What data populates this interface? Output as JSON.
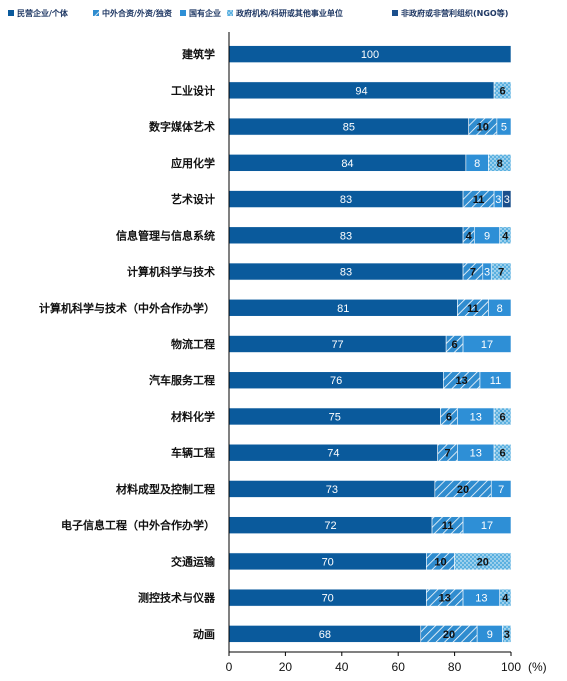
{
  "chart_data": {
    "type": "bar",
    "orientation": "horizontal",
    "stacked": true,
    "xlabel": "",
    "ylabel": "",
    "xlim": [
      0,
      100
    ],
    "x_ticks": [
      0,
      20,
      40,
      60,
      80,
      100
    ],
    "unit_label": "(%)",
    "legend_position": "top",
    "grid": false,
    "categories": [
      "建筑学",
      "工业设计",
      "数字媒体艺术",
      "应用化学",
      "艺术设计",
      "信息管理与信息系统",
      "计算机科学与技术",
      "计算机科学与技术（中外合作办学）",
      "物流工程",
      "汽车服务工程",
      "材料化学",
      "车辆工程",
      "材料成型及控制工程",
      "电子信息工程（中外合作办学）",
      "交通运输",
      "测控技术与仪器",
      "动画"
    ],
    "series": [
      {
        "name": "民营企业/个体",
        "color": "#0a5a9c",
        "pattern": "solid",
        "label_style": "light",
        "values": [
          100,
          94,
          85,
          84,
          83,
          83,
          83,
          81,
          77,
          76,
          75,
          74,
          73,
          72,
          70,
          70,
          68
        ]
      },
      {
        "name": "中外合资/外资/独资",
        "color": "#2f8ccf",
        "pattern": "hatch",
        "label_style": "dark",
        "values": [
          0,
          0,
          10,
          0,
          11,
          4,
          7,
          11,
          6,
          13,
          6,
          7,
          20,
          11,
          10,
          13,
          20
        ]
      },
      {
        "name": "国有企业",
        "color": "#2e8fd6",
        "pattern": "solid",
        "label_style": "light",
        "values": [
          0,
          0,
          5,
          8,
          3,
          9,
          3,
          8,
          17,
          11,
          13,
          13,
          7,
          17,
          0,
          13,
          9
        ]
      },
      {
        "name": "政府机构/科研或其他事业单位",
        "color": "#5ab0e0",
        "pattern": "cross",
        "label_style": "dark",
        "values": [
          0,
          6,
          0,
          8,
          0,
          4,
          7,
          0,
          0,
          0,
          6,
          6,
          0,
          0,
          20,
          4,
          3
        ]
      },
      {
        "name": "非政府或非营利组织(NGO等)",
        "color": "#1b4f8c",
        "pattern": "solid",
        "label_style": "light",
        "values": [
          0,
          0,
          0,
          0,
          3,
          0,
          0,
          0,
          0,
          0,
          0,
          0,
          0,
          0,
          0,
          0,
          0
        ]
      }
    ]
  }
}
